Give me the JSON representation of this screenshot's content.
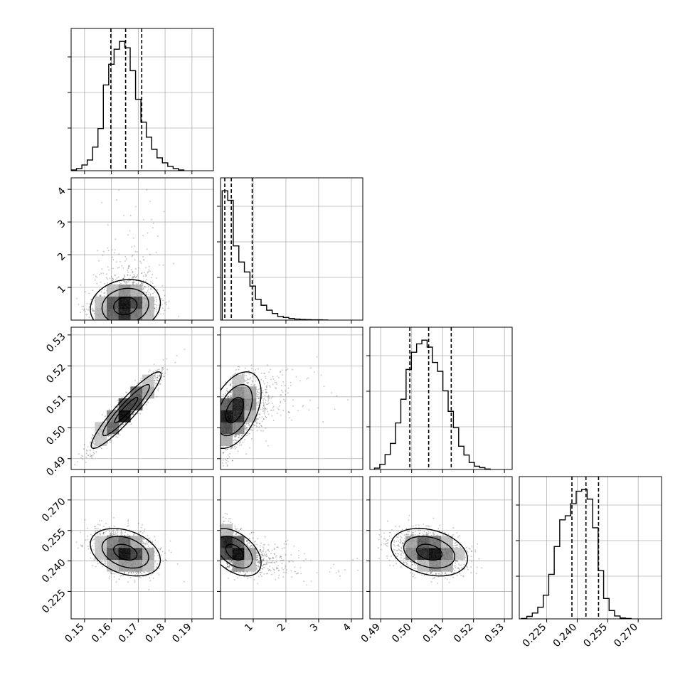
{
  "chart_data": {
    "type": "corner",
    "grid": true,
    "parameters": [
      {
        "lim": [
          0.145,
          0.198
        ],
        "ticks": [
          0.15,
          0.16,
          0.17,
          0.18,
          0.19
        ],
        "tick_labels": [
          "0.15",
          "0.16",
          "0.17",
          "0.18",
          "0.19"
        ],
        "quantiles": [
          0.1598,
          0.1653,
          0.1713
        ],
        "hist_edges": [
          0.145,
          0.147,
          0.149,
          0.151,
          0.153,
          0.155,
          0.157,
          0.159,
          0.161,
          0.163,
          0.165,
          0.167,
          0.169,
          0.171,
          0.173,
          0.175,
          0.177,
          0.179,
          0.181,
          0.183,
          0.185,
          0.187
        ],
        "hist_counts": [
          10,
          30,
          80,
          150,
          330,
          590,
          1200,
          1490,
          1700,
          1810,
          1720,
          1400,
          1000,
          680,
          470,
          300,
          180,
          110,
          60,
          30,
          10
        ]
      },
      {
        "lim": [
          0.0,
          4.35
        ],
        "ticks": [
          1,
          2,
          3,
          4
        ],
        "tick_labels": [
          "1",
          "2",
          "3",
          "4"
        ],
        "quantiles": [
          0.13,
          0.33,
          0.97
        ],
        "hist_edges": [
          0.05,
          0.22,
          0.39,
          0.56,
          0.73,
          0.9,
          1.07,
          1.24,
          1.41,
          1.58,
          1.75,
          1.92,
          2.09,
          2.26,
          2.43,
          2.6,
          2.77,
          2.94,
          3.11,
          3.28
        ],
        "hist_counts": [
          3920,
          3630,
          2250,
          1760,
          1460,
          1030,
          630,
          450,
          300,
          200,
          110,
          80,
          50,
          30,
          20,
          15,
          10,
          8,
          5
        ]
      },
      {
        "lim": [
          0.4865,
          0.5325
        ],
        "ticks": [
          0.49,
          0.5,
          0.51,
          0.52,
          0.53
        ],
        "tick_labels": [
          "0.49",
          "0.50",
          "0.51",
          "0.52",
          "0.53"
        ],
        "quantiles": [
          0.4994,
          0.5055,
          0.5128
        ],
        "hist_edges": [
          0.488,
          0.4897,
          0.4914,
          0.4931,
          0.4948,
          0.4965,
          0.4982,
          0.4999,
          0.5016,
          0.5033,
          0.505,
          0.5067,
          0.5084,
          0.5101,
          0.5118,
          0.5135,
          0.5152,
          0.5169,
          0.5186,
          0.5203,
          0.522,
          0.5237,
          0.5254
        ],
        "hist_counts": [
          30,
          110,
          320,
          560,
          1000,
          1510,
          2150,
          2520,
          2700,
          2780,
          2630,
          2300,
          2110,
          1690,
          1250,
          900,
          500,
          310,
          150,
          70,
          40,
          10
        ]
      },
      {
        "lim": [
          0.2115,
          0.2815
        ],
        "ticks": [
          0.225,
          0.24,
          0.255,
          0.27
        ],
        "tick_labels": [
          "0.225",
          "0.240",
          "0.255",
          "0.270"
        ],
        "quantiles": [
          0.2374,
          0.2443,
          0.2505
        ],
        "hist_edges": [
          0.2125,
          0.2152,
          0.2179,
          0.2206,
          0.2233,
          0.226,
          0.2287,
          0.2314,
          0.2341,
          0.2368,
          0.2395,
          0.2422,
          0.2449,
          0.2476,
          0.2503,
          0.253,
          0.2557,
          0.2584,
          0.2611,
          0.2638,
          0.2665
        ],
        "hist_counts": [
          10,
          60,
          140,
          280,
          570,
          1070,
          1740,
          2380,
          2480,
          2770,
          3070,
          3110,
          2880,
          2190,
          1160,
          490,
          200,
          70,
          20,
          10
        ]
      }
    ],
    "pairs": [
      {
        "row": 1,
        "col": 0,
        "mean": [
          0.1652,
          0.48
        ],
        "sd": [
          0.0058,
          0.34
        ],
        "rho": 0.12,
        "clip": [
          null,
          0.05
        ],
        "skew": [
          0,
          0.9
        ]
      },
      {
        "row": 2,
        "col": 0,
        "mean": [
          0.1655,
          0.5057
        ],
        "sd": [
          0.0058,
          0.0055
        ],
        "rho": 0.93,
        "clip": [
          null,
          null
        ],
        "skew": [
          0,
          0
        ]
      },
      {
        "row": 2,
        "col": 1,
        "mean": [
          0.48,
          0.5057
        ],
        "sd": [
          0.34,
          0.0055
        ],
        "rho": 0.45,
        "clip": [
          0.05,
          null
        ],
        "skew": [
          0.9,
          0
        ]
      },
      {
        "row": 3,
        "col": 0,
        "mean": [
          0.1652,
          0.2443
        ],
        "sd": [
          0.0058,
          0.0052
        ],
        "rho": -0.33,
        "clip": [
          null,
          null
        ],
        "skew": [
          0,
          0
        ]
      },
      {
        "row": 3,
        "col": 1,
        "mean": [
          0.48,
          0.2443
        ],
        "sd": [
          0.34,
          0.0052
        ],
        "rho": -0.45,
        "clip": [
          0.05,
          null
        ],
        "skew": [
          0.9,
          0
        ]
      },
      {
        "row": 3,
        "col": 2,
        "mean": [
          0.5057,
          0.2443
        ],
        "sd": [
          0.0055,
          0.0052
        ],
        "rho": -0.28,
        "clip": [
          null,
          null
        ],
        "skew": [
          0,
          0
        ]
      }
    ],
    "samples_per_panel": 1600,
    "density_bins": 12,
    "contour_levels_sigma": [
      0.5,
      1.0,
      1.5
    ]
  }
}
